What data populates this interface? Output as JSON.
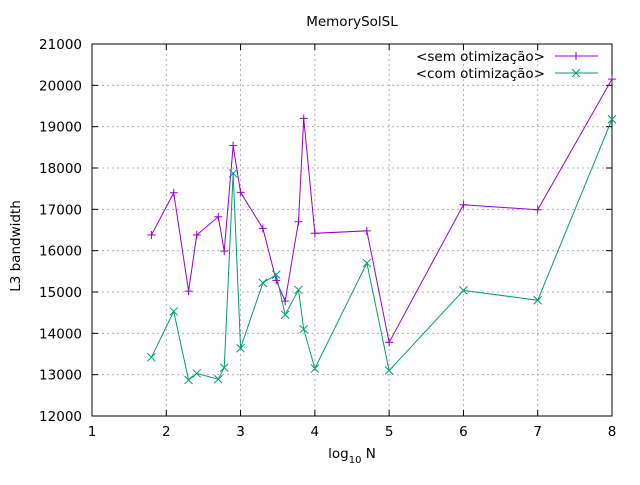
{
  "chart_data": {
    "type": "line",
    "title": "MemorySolSL",
    "xlabel_main": "log",
    "xlabel_sub": "10",
    "xlabel_rest": " N",
    "ylabel": "L3 bandwidth",
    "xlim": [
      1,
      8
    ],
    "ylim": [
      12000,
      21000
    ],
    "xticks": [
      1,
      2,
      3,
      4,
      5,
      6,
      7,
      8
    ],
    "yticks": [
      12000,
      13000,
      14000,
      15000,
      16000,
      17000,
      18000,
      19000,
      20000,
      21000
    ],
    "grid": true,
    "legend_position": "top-right",
    "series": [
      {
        "name": "<sem otimização>",
        "color": "#9400d3",
        "marker": "plus",
        "points": [
          [
            1.8,
            16380
          ],
          [
            2.1,
            17400
          ],
          [
            2.3,
            15020
          ],
          [
            2.41,
            16380
          ],
          [
            2.7,
            16820
          ],
          [
            2.78,
            15990
          ],
          [
            2.9,
            18540
          ],
          [
            3.0,
            17410
          ],
          [
            3.3,
            16540
          ],
          [
            3.48,
            15280
          ],
          [
            3.6,
            14780
          ],
          [
            3.78,
            16700
          ],
          [
            3.85,
            19200
          ],
          [
            4.0,
            16420
          ],
          [
            4.7,
            16480
          ],
          [
            5.0,
            13780
          ],
          [
            6.0,
            17110
          ],
          [
            7.0,
            16990
          ],
          [
            8.0,
            20150
          ]
        ]
      },
      {
        "name": "<com otimização>",
        "color": "#009e73",
        "marker": "cross",
        "points": [
          [
            1.8,
            13420
          ],
          [
            2.1,
            14530
          ],
          [
            2.3,
            12870
          ],
          [
            2.41,
            13030
          ],
          [
            2.7,
            12890
          ],
          [
            2.78,
            13170
          ],
          [
            2.9,
            17870
          ],
          [
            3.0,
            13640
          ],
          [
            3.3,
            15220
          ],
          [
            3.48,
            15420
          ],
          [
            3.6,
            14450
          ],
          [
            3.78,
            15050
          ],
          [
            3.85,
            14100
          ],
          [
            4.0,
            13150
          ],
          [
            4.7,
            15700
          ],
          [
            5.0,
            13100
          ],
          [
            6.0,
            15040
          ],
          [
            7.0,
            14800
          ],
          [
            8.0,
            19180
          ]
        ]
      }
    ]
  }
}
